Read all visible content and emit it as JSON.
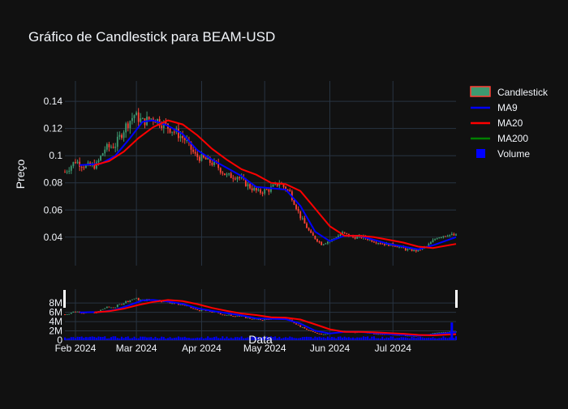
{
  "title": "Gráfico de Candlestick para BEAM-USD",
  "colors": {
    "background": "#111111",
    "grid": "#283442",
    "text": "#f2f5fa",
    "increasing": "#3d9970",
    "decreasing": "#ff4136",
    "ma9": "#0000ff",
    "ma20": "#ff0000",
    "ma200": "#008000",
    "volume": "#0000ff"
  },
  "legend": {
    "position": "top-right",
    "items": [
      {
        "label": "Candlestick",
        "icon": "candlestick-icon"
      },
      {
        "label": "MA9",
        "icon": "line-icon"
      },
      {
        "label": "MA20",
        "icon": "line-icon"
      },
      {
        "label": "MA200",
        "icon": "line-icon"
      },
      {
        "label": "Volume",
        "icon": "square-icon"
      }
    ]
  },
  "chart_data": {
    "type": "candlestick",
    "title": "Gráfico de Candlestick para BEAM-USD",
    "ylabel": "Preço",
    "xlabel": "Data",
    "grid": true,
    "legend_position": "top-right",
    "x_range": [
      "2024-01-27",
      "2024-07-31"
    ],
    "y_range": [
      0.019,
      0.155
    ],
    "y_ticks": [
      0.04,
      0.06,
      0.08,
      0.1,
      0.12,
      0.14
    ],
    "y_tick_labels": [
      "0.04",
      "0.06",
      "0.08",
      "0.1",
      "0.12",
      "0.14"
    ],
    "x_ticks": [
      "2024-02-01",
      "2024-03-01",
      "2024-04-01",
      "2024-05-01",
      "2024-06-01",
      "2024-07-01"
    ],
    "x_tick_labels": [
      "Feb 2024",
      "Mar 2024",
      "Apr 2024",
      "May 2024",
      "Jun 2024",
      "Jul 2024"
    ],
    "close_path": [
      [
        "2024-01-27",
        0.088
      ],
      [
        "2024-02-01",
        0.096
      ],
      [
        "2024-02-06",
        0.092
      ],
      [
        "2024-02-11",
        0.093
      ],
      [
        "2024-02-15",
        0.105
      ],
      [
        "2024-02-20",
        0.108
      ],
      [
        "2024-02-25",
        0.122
      ],
      [
        "2024-02-29",
        0.13
      ],
      [
        "2024-03-04",
        0.125
      ],
      [
        "2024-03-09",
        0.128
      ],
      [
        "2024-03-14",
        0.123
      ],
      [
        "2024-03-19",
        0.118
      ],
      [
        "2024-03-24",
        0.112
      ],
      [
        "2024-03-29",
        0.1
      ],
      [
        "2024-04-03",
        0.097
      ],
      [
        "2024-04-08",
        0.093
      ],
      [
        "2024-04-13",
        0.085
      ],
      [
        "2024-04-18",
        0.085
      ],
      [
        "2024-04-23",
        0.078
      ],
      [
        "2024-04-28",
        0.073
      ],
      [
        "2024-05-03",
        0.075
      ],
      [
        "2024-05-08",
        0.08
      ],
      [
        "2024-05-13",
        0.073
      ],
      [
        "2024-05-18",
        0.055
      ],
      [
        "2024-05-23",
        0.042
      ],
      [
        "2024-05-28",
        0.035
      ],
      [
        "2024-06-02",
        0.038
      ],
      [
        "2024-06-07",
        0.043
      ],
      [
        "2024-06-12",
        0.04
      ],
      [
        "2024-06-17",
        0.04
      ],
      [
        "2024-06-22",
        0.037
      ],
      [
        "2024-06-27",
        0.035
      ],
      [
        "2024-07-02",
        0.034
      ],
      [
        "2024-07-07",
        0.031
      ],
      [
        "2024-07-12",
        0.03
      ],
      [
        "2024-07-17",
        0.033
      ],
      [
        "2024-07-22",
        0.04
      ],
      [
        "2024-07-27",
        0.042
      ],
      [
        "2024-07-31",
        0.041
      ]
    ],
    "ma9": [
      [
        "2024-02-03",
        0.093
      ],
      [
        "2024-02-13",
        0.094
      ],
      [
        "2024-02-20",
        0.1
      ],
      [
        "2024-02-27",
        0.113
      ],
      [
        "2024-03-04",
        0.125
      ],
      [
        "2024-03-09",
        0.126
      ],
      [
        "2024-03-16",
        0.122
      ],
      [
        "2024-03-23",
        0.116
      ],
      [
        "2024-03-30",
        0.104
      ],
      [
        "2024-04-06",
        0.097
      ],
      [
        "2024-04-13",
        0.091
      ],
      [
        "2024-04-20",
        0.085
      ],
      [
        "2024-04-27",
        0.077
      ],
      [
        "2024-05-04",
        0.076
      ],
      [
        "2024-05-11",
        0.075
      ],
      [
        "2024-05-18",
        0.063
      ],
      [
        "2024-05-25",
        0.044
      ],
      [
        "2024-06-01",
        0.037
      ],
      [
        "2024-06-08",
        0.041
      ],
      [
        "2024-06-15",
        0.041
      ],
      [
        "2024-06-22",
        0.038
      ],
      [
        "2024-06-29",
        0.035
      ],
      [
        "2024-07-06",
        0.033
      ],
      [
        "2024-07-13",
        0.031
      ],
      [
        "2024-07-20",
        0.034
      ],
      [
        "2024-07-31",
        0.04
      ]
    ],
    "ma20": [
      [
        "2024-02-10",
        0.093
      ],
      [
        "2024-02-17",
        0.096
      ],
      [
        "2024-02-24",
        0.103
      ],
      [
        "2024-03-02",
        0.113
      ],
      [
        "2024-03-09",
        0.121
      ],
      [
        "2024-03-16",
        0.126
      ],
      [
        "2024-03-23",
        0.123
      ],
      [
        "2024-03-30",
        0.115
      ],
      [
        "2024-04-06",
        0.105
      ],
      [
        "2024-04-13",
        0.097
      ],
      [
        "2024-04-20",
        0.09
      ],
      [
        "2024-04-27",
        0.086
      ],
      [
        "2024-05-04",
        0.08
      ],
      [
        "2024-05-11",
        0.079
      ],
      [
        "2024-05-18",
        0.074
      ],
      [
        "2024-05-25",
        0.061
      ],
      [
        "2024-06-01",
        0.048
      ],
      [
        "2024-06-08",
        0.041
      ],
      [
        "2024-06-15",
        0.041
      ],
      [
        "2024-06-22",
        0.04
      ],
      [
        "2024-06-29",
        0.038
      ],
      [
        "2024-07-06",
        0.036
      ],
      [
        "2024-07-13",
        0.033
      ],
      [
        "2024-07-20",
        0.032
      ],
      [
        "2024-07-31",
        0.035
      ]
    ],
    "ma200": [],
    "volume": {
      "y_range": [
        0,
        11
      ],
      "y_ticks": [
        0,
        2,
        4,
        6,
        8
      ],
      "y_tick_labels": [
        "0",
        "2M",
        "4M",
        "6M",
        "8M"
      ],
      "unit": "M",
      "typical_level": 0.6,
      "spike": {
        "date": "2024-07-29",
        "value": 3.8
      }
    }
  }
}
